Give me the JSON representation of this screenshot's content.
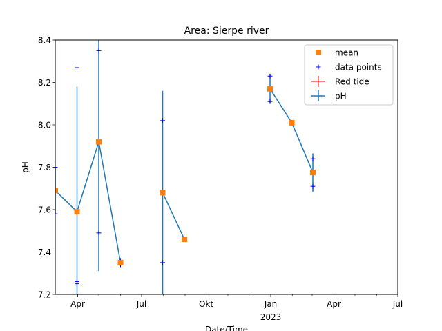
{
  "chart_data": {
    "type": "line",
    "title": "Area: Sierpe river",
    "xlabel": "Date/Time",
    "ylabel": "pH",
    "ylim": [
      7.2,
      8.4
    ],
    "xlim": [
      "2022-02-28",
      "2023-07-01"
    ],
    "y_ticks": [
      "7.2",
      "7.4",
      "7.6",
      "7.8",
      "8.0",
      "8.2",
      "8.4"
    ],
    "x_major_ticks": [
      {
        "date": "2022-04-01",
        "label": "Apr",
        "sublabel": ""
      },
      {
        "date": "2022-07-01",
        "label": "Jul",
        "sublabel": ""
      },
      {
        "date": "2022-10-01",
        "label": "Okt",
        "sublabel": ""
      },
      {
        "date": "2023-01-01",
        "label": "Jan",
        "sublabel": "2023"
      },
      {
        "date": "2023-04-01",
        "label": "Apr",
        "sublabel": ""
      },
      {
        "date": "2023-07-01",
        "label": "Jul",
        "sublabel": ""
      }
    ],
    "x_minor_ticks": [
      "2022-05-01",
      "2022-06-01",
      "2022-08-01",
      "2022-09-01",
      "2022-11-01",
      "2022-12-01",
      "2023-02-01",
      "2023-03-01",
      "2023-05-01",
      "2023-06-01"
    ],
    "legend": {
      "position": "top-right",
      "entries": [
        {
          "key": "mean",
          "label": "mean"
        },
        {
          "key": "points",
          "label": "data points"
        },
        {
          "key": "redtide",
          "label": "Red tide"
        },
        {
          "key": "ph",
          "label": "pH"
        }
      ]
    },
    "colors": {
      "line": "#1f77b4",
      "mean": "#ff7f0e",
      "points": "#0000ff",
      "redtide": "#ff0000"
    },
    "series": [
      {
        "name": "pH",
        "segments": [
          [
            {
              "date": "2022-02-28",
              "mean": 7.69,
              "err": 0.11
            },
            {
              "date": "2022-03-31",
              "mean": 7.59,
              "err": 0.59
            },
            {
              "date": "2022-05-01",
              "mean": 7.92,
              "err": 0.61
            },
            {
              "date": "2022-06-01",
              "mean": 7.35,
              "err": 0.01
            }
          ],
          [
            {
              "date": "2022-07-31",
              "mean": 7.68,
              "err": 0.48
            },
            {
              "date": "2022-08-31",
              "mean": 7.46,
              "err": 0.0
            }
          ],
          [
            {
              "date": "2022-12-31",
              "mean": 8.17,
              "err": 0.07
            },
            {
              "date": "2023-01-31",
              "mean": 8.01,
              "err": 0.0
            },
            {
              "date": "2023-03-02",
              "mean": 7.775,
              "err": 0.09
            }
          ]
        ]
      },
      {
        "name": "data points",
        "points": [
          {
            "date": "2022-02-28",
            "value": 7.8
          },
          {
            "date": "2022-02-28",
            "value": 7.58
          },
          {
            "date": "2022-03-31",
            "value": 8.27
          },
          {
            "date": "2022-03-31",
            "value": 7.26
          },
          {
            "date": "2022-03-31",
            "value": 7.25
          },
          {
            "date": "2022-05-01",
            "value": 8.35
          },
          {
            "date": "2022-05-01",
            "value": 7.49
          },
          {
            "date": "2022-06-01",
            "value": 7.36
          },
          {
            "date": "2022-06-01",
            "value": 7.34
          },
          {
            "date": "2022-07-31",
            "value": 8.02
          },
          {
            "date": "2022-07-31",
            "value": 7.35
          },
          {
            "date": "2022-08-31",
            "value": 7.46
          },
          {
            "date": "2022-12-31",
            "value": 8.23
          },
          {
            "date": "2022-12-31",
            "value": 8.11
          },
          {
            "date": "2023-01-31",
            "value": 8.01
          },
          {
            "date": "2023-03-02",
            "value": 7.84
          },
          {
            "date": "2023-03-02",
            "value": 7.71
          }
        ]
      }
    ]
  }
}
